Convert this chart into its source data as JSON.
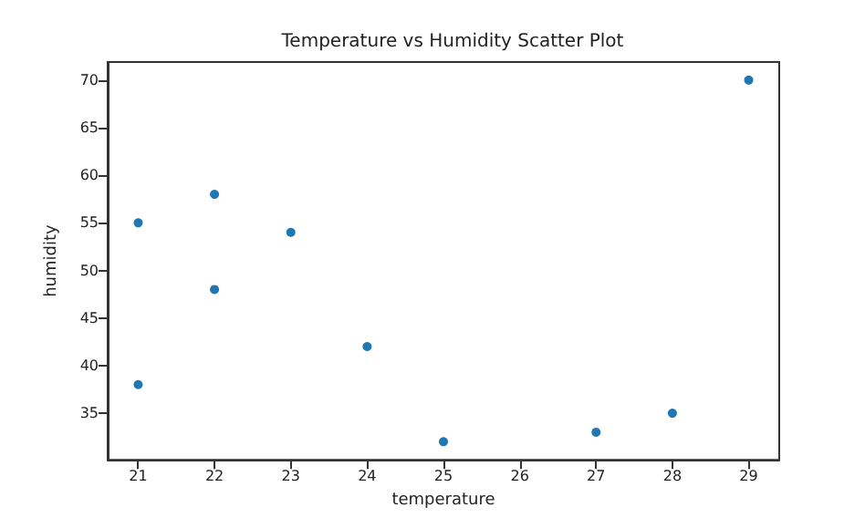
{
  "chart_data": {
    "type": "scatter",
    "title": "Temperature vs Humidity Scatter Plot",
    "xlabel": "temperature",
    "ylabel": "humidity",
    "x": [
      21,
      21,
      22,
      22,
      23,
      24,
      25,
      27,
      28,
      29
    ],
    "series": [
      {
        "color": "#1f77b4",
        "values": [
          55,
          38,
          58,
          48,
          54,
          42,
          32,
          33,
          35,
          70
        ]
      }
    ],
    "xlim": [
      20.6,
      29.4
    ],
    "xticks": [
      21,
      22,
      23,
      24,
      25,
      26,
      27,
      28,
      29
    ],
    "ylim": [
      30.1,
      71.9
    ],
    "yticks": [
      35,
      40,
      45,
      50,
      55,
      60,
      65,
      70
    ],
    "grid": false,
    "marker": "circle"
  }
}
